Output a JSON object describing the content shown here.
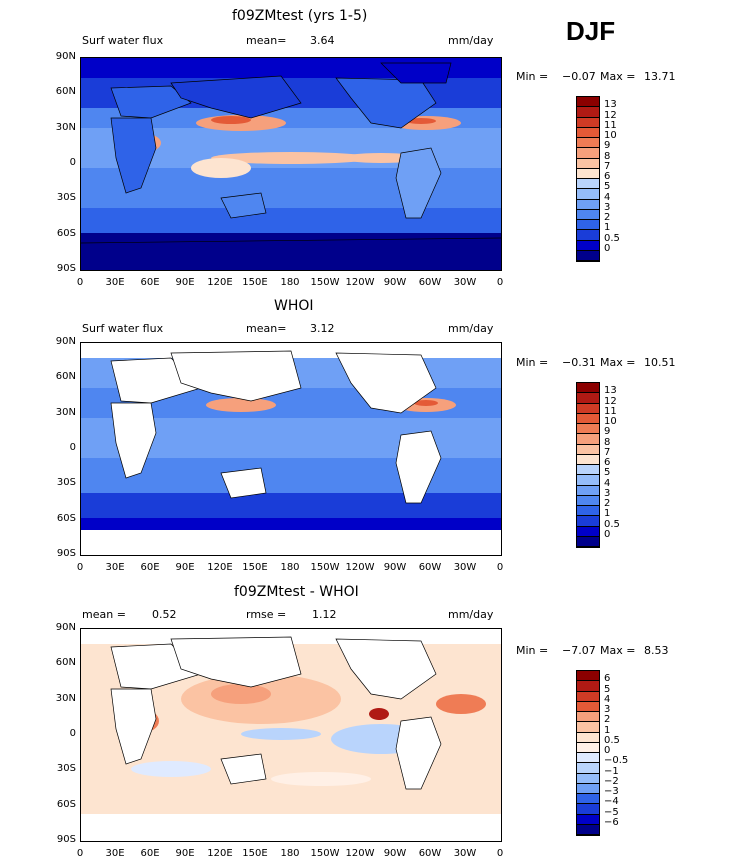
{
  "season": "DJF",
  "x_ticks": [
    "0",
    "30E",
    "60E",
    "90E",
    "120E",
    "150E",
    "180",
    "150W",
    "120W",
    "90W",
    "60W",
    "30W",
    "0"
  ],
  "y_ticks": [
    "90N",
    "60N",
    "30N",
    "0",
    "30S",
    "60S",
    "90S"
  ],
  "colors": {
    "seq": [
      "#00008b",
      "#0000c8",
      "#1a3dd8",
      "#2f63e8",
      "#4f86f0",
      "#6fa0f5",
      "#95bdfa",
      "#b9d4fc",
      "#dfeaff",
      "#fde4d0",
      "#fbc3a3",
      "#f6a07c",
      "#ef7c55",
      "#e45a37",
      "#cf3b25",
      "#b01a14",
      "#8b0000"
    ],
    "div": [
      "#00008b",
      "#0000c8",
      "#1a3dd8",
      "#2f63e8",
      "#4f86f0",
      "#6fa0f5",
      "#95bdfa",
      "#b9d4fc",
      "#dfeaff",
      "#fff0e6",
      "#fde4d0",
      "#fbc3a3",
      "#f6a07c",
      "#ef7c55",
      "#e45a37",
      "#cf3b25",
      "#b01a14",
      "#8b0000"
    ]
  },
  "panels": [
    {
      "title": "f09ZMtest (yrs 1-5)",
      "left_label": "Surf water flux",
      "stat_label": "mean=",
      "stat_value": "3.64",
      "stat2_label": "",
      "stat2_value": "",
      "units": "mm/day",
      "min_label": "Min =",
      "min_value": "−0.07",
      "max_label": "Max =",
      "max_value": "13.71",
      "colorbar_levels": [
        "13",
        "12",
        "11",
        "10",
        "9",
        "8",
        "7",
        "6",
        "5",
        "4",
        "3",
        "2",
        "1",
        "0.5",
        "0"
      ]
    },
    {
      "title": "WHOI",
      "left_label": "Surf water flux",
      "stat_label": "mean=",
      "stat_value": "3.12",
      "stat2_label": "",
      "stat2_value": "",
      "units": "mm/day",
      "min_label": "Min =",
      "min_value": "−0.31",
      "max_label": "Max =",
      "max_value": "10.51",
      "colorbar_levels": [
        "13",
        "12",
        "11",
        "10",
        "9",
        "8",
        "7",
        "6",
        "5",
        "4",
        "3",
        "2",
        "1",
        "0.5",
        "0"
      ]
    },
    {
      "title": "f09ZMtest - WHOI",
      "left_label": "mean =",
      "left_value": "0.52",
      "stat_label": "rmse =",
      "stat_value": "1.12",
      "units": "mm/day",
      "min_label": "Min =",
      "min_value": "−7.07",
      "max_label": "Max =",
      "max_value": "8.53",
      "colorbar_levels": [
        "6",
        "5",
        "4",
        "3",
        "2",
        "1",
        "0.5",
        "0",
        "−0.5",
        "−1",
        "−2",
        "−3",
        "−4",
        "−5",
        "−6"
      ]
    }
  ]
}
